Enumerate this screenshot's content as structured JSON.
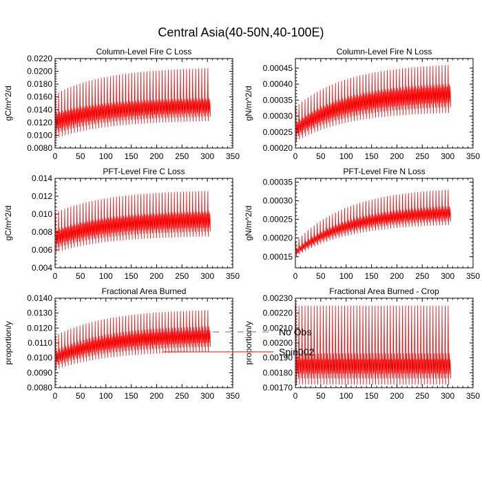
{
  "title": "Central Asia(40-50N,40-100E)",
  "legend": {
    "entries": [
      {
        "label": "No Obs",
        "color": "#6a6aa8",
        "style": "dashed"
      },
      {
        "label": "Spin002",
        "color": "#ff0000",
        "style": "solid"
      }
    ]
  },
  "chart_data": [
    {
      "type": "line",
      "title": "Column-Level Fire C Loss",
      "ylabel": "gC/m^2/d",
      "xlim": [
        0,
        350
      ],
      "xticks": [
        "0",
        "50",
        "100",
        "150",
        "200",
        "250",
        "300",
        "350"
      ],
      "ylim": [
        0.008,
        0.022
      ],
      "yticks": [
        "0.0080",
        "0.0100",
        "0.0120",
        "0.0140",
        "0.0160",
        "0.0180",
        "0.0200",
        "0.0220"
      ],
      "series": [
        {
          "name": "Spin002",
          "color": "#ff0000",
          "n_points": 306,
          "period": 6,
          "trough_start": 0.0095,
          "trough_end": 0.0122,
          "peak_start": 0.0165,
          "peak_end": 0.0205,
          "secondary_start": 0.0135,
          "secondary_end": 0.0158
        }
      ]
    },
    {
      "type": "line",
      "title": "Column-Level Fire N Loss",
      "ylabel": "gN/m^2/d",
      "xlim": [
        0,
        350
      ],
      "xticks": [
        "0",
        "50",
        "100",
        "150",
        "200",
        "250",
        "300",
        "350"
      ],
      "ylim": [
        0.0002,
        0.00048
      ],
      "yticks": [
        "0.00020",
        "0.00025",
        "0.00030",
        "0.00035",
        "0.00040",
        "0.00045"
      ],
      "series": [
        {
          "name": "Spin002",
          "color": "#ff0000",
          "n_points": 306,
          "period": 6,
          "trough_start": 0.00022,
          "trough_end": 0.00031,
          "peak_start": 0.00033,
          "peak_end": 0.00046,
          "secondary_start": 0.00028,
          "secondary_end": 0.0004
        }
      ]
    },
    {
      "type": "line",
      "title": "PFT-Level Fire C Loss",
      "ylabel": "gC/m^2/d",
      "xlim": [
        0,
        350
      ],
      "xticks": [
        "0",
        "50",
        "100",
        "150",
        "200",
        "250",
        "300",
        "350"
      ],
      "ylim": [
        0.004,
        0.014
      ],
      "yticks": [
        "0.004",
        "0.006",
        "0.008",
        "0.010",
        "0.012",
        "0.014"
      ],
      "series": [
        {
          "name": "Spin002",
          "color": "#ff0000",
          "n_points": 306,
          "period": 6,
          "trough_start": 0.0057,
          "trough_end": 0.0075,
          "peak_start": 0.0102,
          "peak_end": 0.0126,
          "secondary_start": 0.0082,
          "secondary_end": 0.0103
        }
      ]
    },
    {
      "type": "line",
      "title": "PFT-Level Fire N Loss",
      "ylabel": "gN/m^2/d",
      "xlim": [
        0,
        350
      ],
      "xticks": [
        "0",
        "50",
        "100",
        "150",
        "200",
        "250",
        "300",
        "350"
      ],
      "ylim": [
        0.00012,
        0.00036
      ],
      "yticks": [
        "0.00015",
        "0.00020",
        "0.00025",
        "0.00030",
        "0.00035"
      ],
      "series": [
        {
          "name": "Spin002",
          "color": "#ff0000",
          "n_points": 306,
          "period": 6,
          "trough_start": 0.00015,
          "trough_end": 0.000235,
          "peak_start": 0.00019,
          "peak_end": 0.00033,
          "secondary_start": 0.00017,
          "secondary_end": 0.000285
        }
      ]
    },
    {
      "type": "line",
      "title": "Fractional Area Burned",
      "ylabel": "proportion/y",
      "xlim": [
        0,
        350
      ],
      "xticks": [
        "0",
        "50",
        "100",
        "150",
        "200",
        "250",
        "300",
        "350"
      ],
      "ylim": [
        0.008,
        0.014
      ],
      "yticks": [
        "0.0080",
        "0.0090",
        "0.0100",
        "0.0110",
        "0.0120",
        "0.0130",
        "0.0140"
      ],
      "series": [
        {
          "name": "Spin002",
          "color": "#ff0000",
          "n_points": 306,
          "period": 6,
          "trough_start": 0.0092,
          "trough_end": 0.0104,
          "peak_start": 0.0115,
          "peak_end": 0.0132,
          "secondary_start": 0.0105,
          "secondary_end": 0.0121
        }
      ]
    },
    {
      "type": "line",
      "title": "Fractional Area Burned - Crop",
      "ylabel": "proportion/y",
      "xlim": [
        0,
        350
      ],
      "xticks": [
        "0",
        "50",
        "100",
        "150",
        "200",
        "250",
        "300",
        "350"
      ],
      "ylim": [
        0.0017,
        0.0023
      ],
      "yticks": [
        "0.00170",
        "0.00180",
        "0.00190",
        "0.00200",
        "0.00210",
        "0.00220",
        "0.00230"
      ],
      "series": [
        {
          "name": "Spin002",
          "color": "#ff0000",
          "n_points": 306,
          "period": 6,
          "trough_start": 0.00172,
          "trough_end": 0.00172,
          "peak_start": 0.00225,
          "peak_end": 0.00225,
          "secondary_start": 0.00193,
          "secondary_end": 0.00193
        }
      ]
    }
  ]
}
